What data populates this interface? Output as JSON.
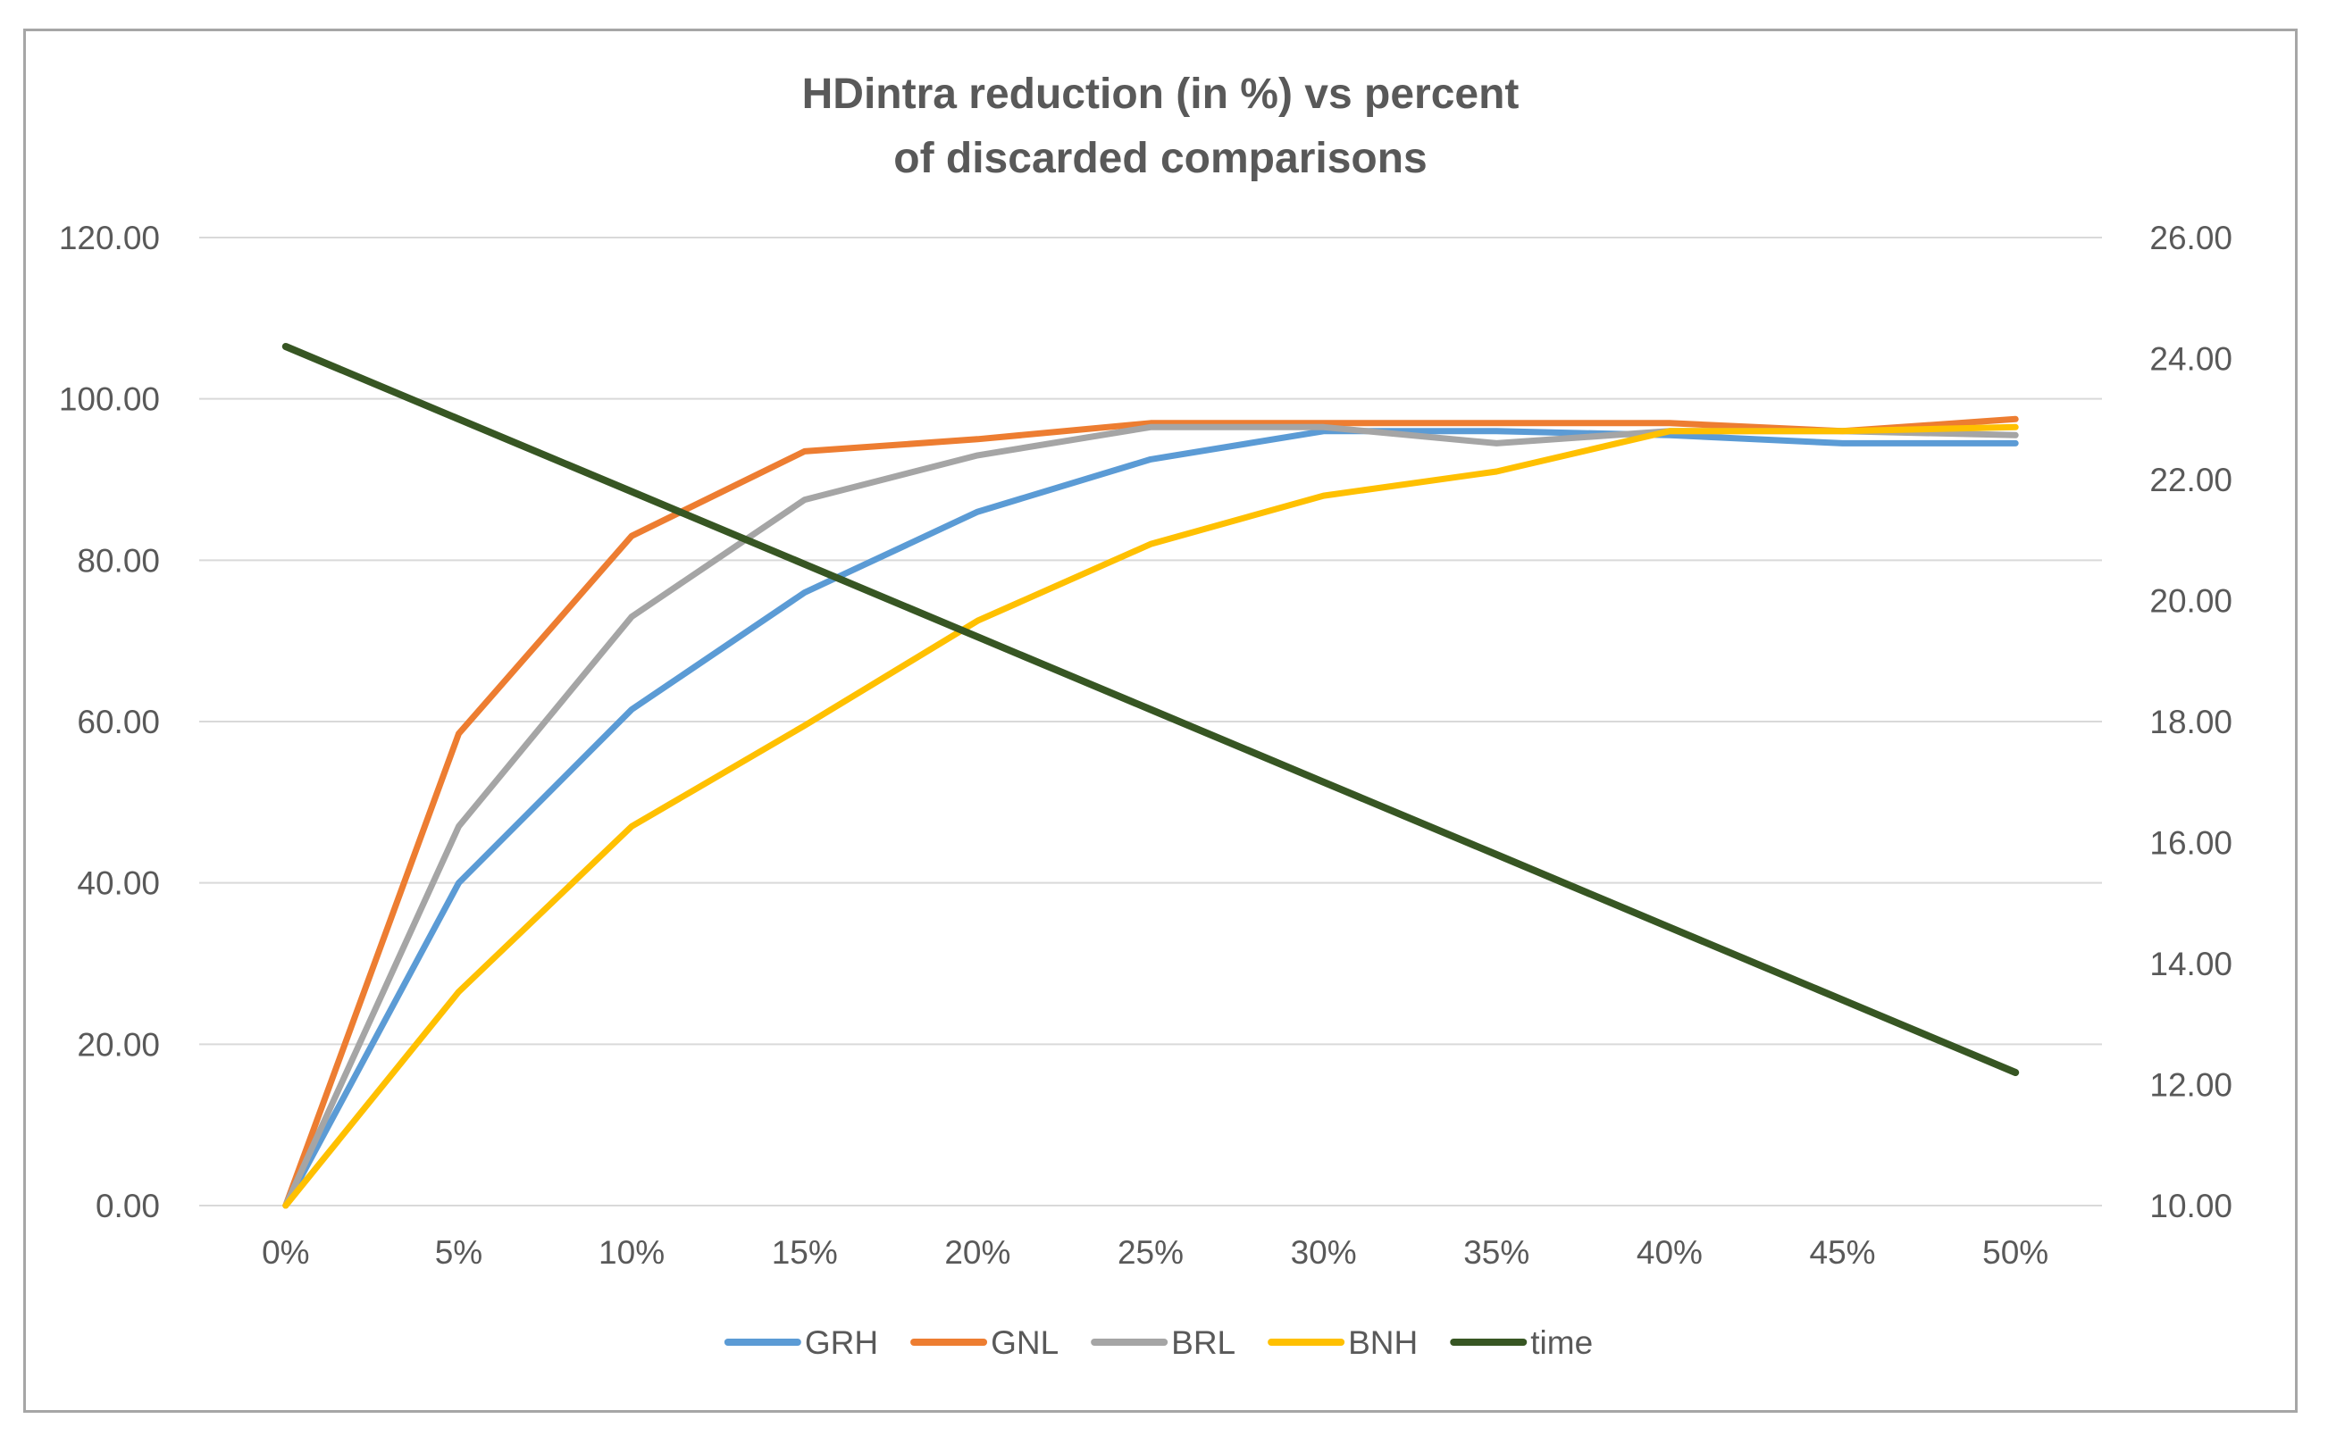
{
  "chart_data": {
    "type": "line",
    "title_lines": [
      "HDintra reduction (in %) vs percent",
      "of discarded comparisons"
    ],
    "xlabel": "",
    "ylabel": "",
    "categories": [
      "0%",
      "5%",
      "10%",
      "15%",
      "20%",
      "25%",
      "30%",
      "35%",
      "40%",
      "45%",
      "50%"
    ],
    "y_left": {
      "min": 0,
      "max": 120,
      "step": 20,
      "tick_labels": [
        "0.00",
        "20.00",
        "40.00",
        "60.00",
        "80.00",
        "100.00",
        "120.00"
      ]
    },
    "y_right": {
      "min": 10,
      "max": 26,
      "step": 2,
      "tick_labels": [
        "10.00",
        "12.00",
        "14.00",
        "16.00",
        "18.00",
        "20.00",
        "22.00",
        "24.00",
        "26.00"
      ]
    },
    "grid": true,
    "legend_position": "bottom",
    "series": [
      {
        "name": "GRH",
        "axis": "left",
        "color": "#5b9bd5",
        "values": [
          0,
          40,
          61.5,
          76,
          86,
          92.5,
          96,
          96,
          95.5,
          94.5,
          94.5
        ]
      },
      {
        "name": "GNL",
        "axis": "left",
        "color": "#ed7d31",
        "values": [
          0,
          58.5,
          83,
          93.5,
          95,
          97,
          97,
          97,
          97,
          96,
          97.5
        ]
      },
      {
        "name": "BRL",
        "axis": "left",
        "color": "#a5a5a5",
        "values": [
          0,
          47,
          73,
          87.5,
          93,
          96.5,
          96.5,
          94.5,
          96,
          96,
          95.5
        ]
      },
      {
        "name": "BNH",
        "axis": "left",
        "color": "#ffc000",
        "values": [
          0,
          26.5,
          47,
          59.5,
          72.5,
          82,
          88,
          91,
          96,
          96,
          96.5
        ]
      },
      {
        "name": "time",
        "axis": "right",
        "color": "#375623",
        "values": [
          24.2,
          23.0,
          21.8,
          20.6,
          19.4,
          18.2,
          17.0,
          15.8,
          14.6,
          13.4,
          12.2
        ]
      }
    ]
  }
}
